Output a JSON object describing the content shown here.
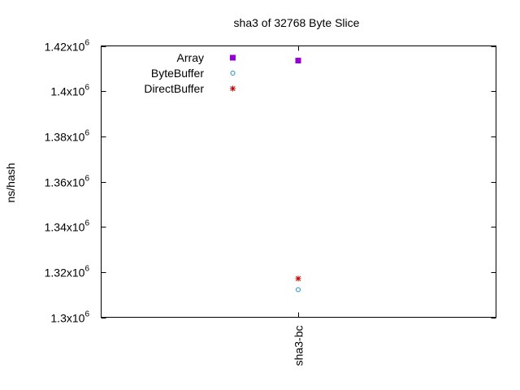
{
  "chart_data": {
    "type": "scatter",
    "title": "sha3 of 32768 Byte Slice",
    "xlabel": "",
    "ylabel": "ns/hash",
    "ylim": [
      1300000,
      1420000
    ],
    "grid": false,
    "legend_position": "top-left",
    "categories": [
      "sha3-bc"
    ],
    "y_ticks": [
      {
        "value": 1300000,
        "mantissa": "1.3",
        "exp": "6"
      },
      {
        "value": 1320000,
        "mantissa": "1.32",
        "exp": "6"
      },
      {
        "value": 1340000,
        "mantissa": "1.34",
        "exp": "6"
      },
      {
        "value": 1360000,
        "mantissa": "1.36",
        "exp": "6"
      },
      {
        "value": 1380000,
        "mantissa": "1.38",
        "exp": "6"
      },
      {
        "value": 1400000,
        "mantissa": "1.4",
        "exp": "6"
      },
      {
        "value": 1420000,
        "mantissa": "1.42",
        "exp": "6"
      }
    ],
    "series": [
      {
        "name": "Array",
        "marker": "filled-square",
        "color": "#9400D3",
        "values": [
          1413500
        ]
      },
      {
        "name": "ByteBuffer",
        "marker": "open-circle",
        "color": "#1E90C8",
        "values": [
          1312200
        ]
      },
      {
        "name": "DirectBuffer",
        "marker": "star",
        "color": "#C00000",
        "values": [
          1317100
        ]
      }
    ]
  }
}
